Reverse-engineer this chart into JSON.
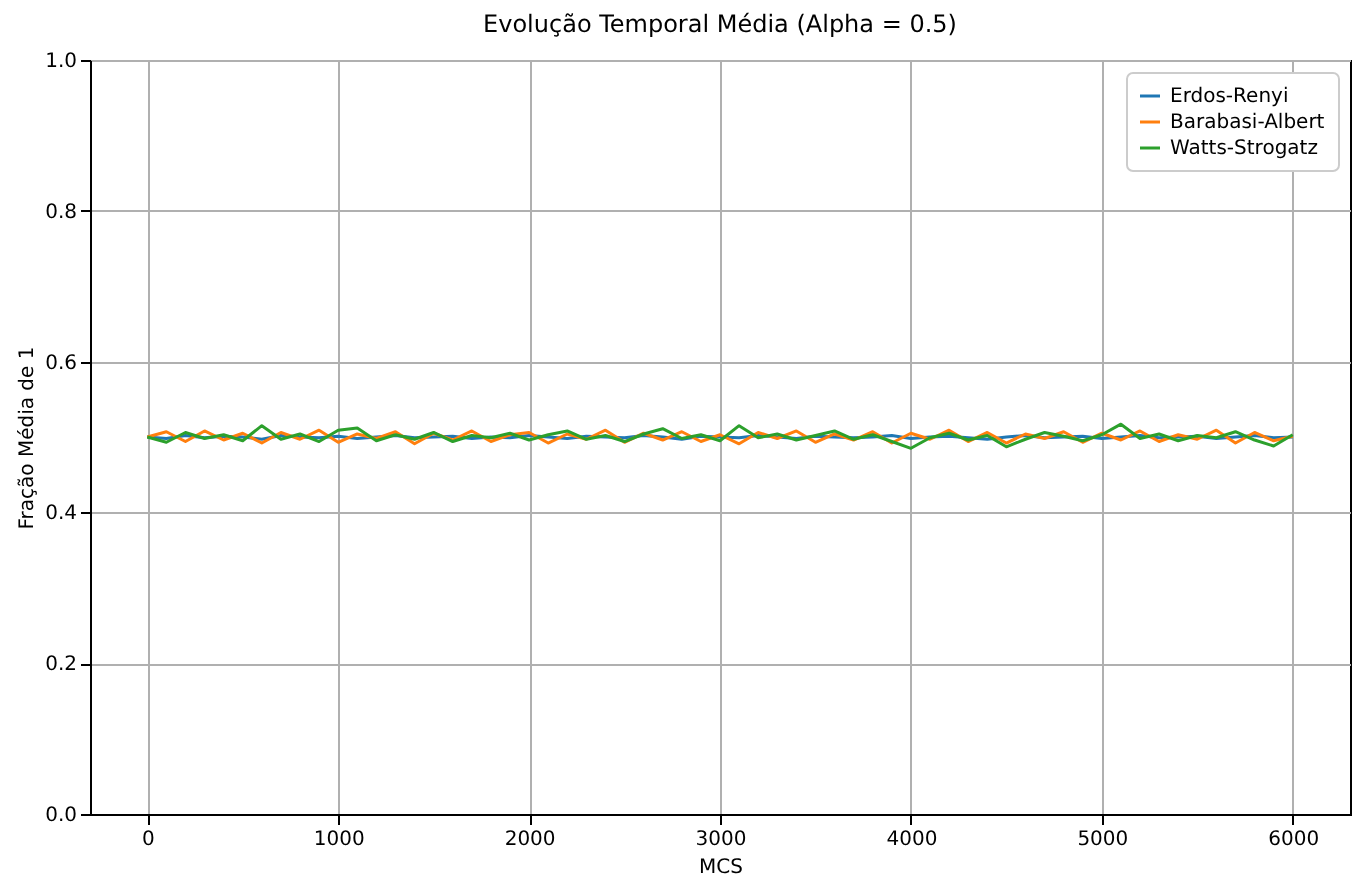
{
  "chart_data": {
    "type": "line",
    "title": "Evolução Temporal Média (Alpha = 0.5)",
    "xlabel": "MCS",
    "ylabel": "Fração Média de 1",
    "x": [
      0,
      100,
      200,
      300,
      400,
      500,
      600,
      700,
      800,
      900,
      1000,
      1100,
      1200,
      1300,
      1400,
      1500,
      1600,
      1700,
      1800,
      1900,
      2000,
      2100,
      2200,
      2300,
      2400,
      2500,
      2600,
      2700,
      2800,
      2900,
      3000,
      3100,
      3200,
      3300,
      3400,
      3500,
      3600,
      3700,
      3800,
      3900,
      4000,
      4100,
      4200,
      4300,
      4400,
      4500,
      4600,
      4700,
      4800,
      4900,
      5000,
      5100,
      5200,
      5300,
      5400,
      5500,
      5600,
      5700,
      5800,
      5900,
      6000
    ],
    "series": [
      {
        "name": "Erdos-Renyi",
        "color": "#1f77b4",
        "values": [
          0.5,
          0.498,
          0.502,
          0.499,
          0.501,
          0.5,
          0.497,
          0.502,
          0.5,
          0.499,
          0.501,
          0.498,
          0.5,
          0.502,
          0.499,
          0.5,
          0.501,
          0.498,
          0.5,
          0.499,
          0.502,
          0.5,
          0.498,
          0.501,
          0.5,
          0.499,
          0.502,
          0.5,
          0.497,
          0.501,
          0.5,
          0.499,
          0.502,
          0.5,
          0.498,
          0.501,
          0.5,
          0.499,
          0.5,
          0.502,
          0.498,
          0.5,
          0.501,
          0.499,
          0.497,
          0.5,
          0.502,
          0.499,
          0.5,
          0.501,
          0.498,
          0.5,
          0.502,
          0.499,
          0.5,
          0.501,
          0.498,
          0.5,
          0.502,
          0.499,
          0.5
        ]
      },
      {
        "name": "Barabasi-Albert",
        "color": "#ff7f0e",
        "values": [
          0.5,
          0.507,
          0.494,
          0.508,
          0.496,
          0.505,
          0.492,
          0.506,
          0.497,
          0.509,
          0.493,
          0.504,
          0.498,
          0.507,
          0.491,
          0.505,
          0.496,
          0.508,
          0.494,
          0.503,
          0.506,
          0.492,
          0.504,
          0.497,
          0.509,
          0.493,
          0.505,
          0.496,
          0.507,
          0.494,
          0.503,
          0.491,
          0.506,
          0.498,
          0.508,
          0.493,
          0.504,
          0.496,
          0.507,
          0.492,
          0.505,
          0.497,
          0.509,
          0.494,
          0.506,
          0.492,
          0.504,
          0.498,
          0.507,
          0.493,
          0.505,
          0.496,
          0.508,
          0.494,
          0.503,
          0.497,
          0.509,
          0.492,
          0.506,
          0.495,
          0.501
        ]
      },
      {
        "name": "Watts-Strogatz",
        "color": "#2ca02c",
        "values": [
          0.5,
          0.493,
          0.506,
          0.498,
          0.503,
          0.495,
          0.515,
          0.497,
          0.504,
          0.494,
          0.509,
          0.512,
          0.495,
          0.503,
          0.497,
          0.506,
          0.494,
          0.502,
          0.499,
          0.505,
          0.496,
          0.503,
          0.508,
          0.497,
          0.502,
          0.494,
          0.504,
          0.511,
          0.498,
          0.503,
          0.495,
          0.515,
          0.499,
          0.504,
          0.496,
          0.502,
          0.508,
          0.497,
          0.503,
          0.494,
          0.485,
          0.499,
          0.505,
          0.496,
          0.502,
          0.487,
          0.497,
          0.506,
          0.501,
          0.495,
          0.503,
          0.517,
          0.498,
          0.504,
          0.495,
          0.502,
          0.499,
          0.507,
          0.496,
          0.488,
          0.503
        ]
      }
    ],
    "xlim": [
      -300,
      6300
    ],
    "xticks": [
      0,
      1000,
      2000,
      3000,
      4000,
      5000,
      6000
    ],
    "ylim": [
      0,
      1
    ],
    "yticks": [
      {
        "value": 0,
        "label": "0.0"
      },
      0.2,
      0.4,
      0.6,
      0.8,
      {
        "value": 1,
        "label": "1.0"
      }
    ],
    "grid": true,
    "legend": "top right",
    "marker": "none",
    "line_style": "solid"
  }
}
